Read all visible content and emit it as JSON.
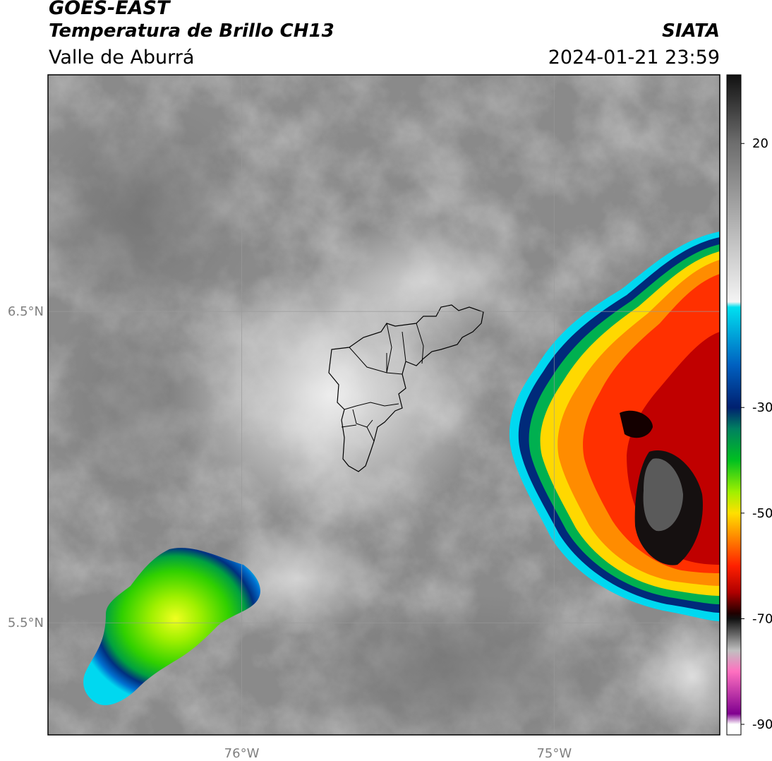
{
  "header": {
    "line1": "GOES-EAST",
    "line2": "Temperatura de Brillo CH13",
    "region": "Valle de Aburrá",
    "org": "SIATA",
    "datetime": "2024-01-21 23:59"
  },
  "map": {
    "lat_labels": [
      "6.5°N",
      "5.5°N"
    ],
    "lon_labels": [
      "76°W",
      "75°W"
    ],
    "lon_range": [
      -76.62,
      -74.47
    ],
    "lat_range": [
      5.14,
      7.26
    ]
  },
  "colorbar": {
    "ticks": [
      {
        "value": 20,
        "label": "20"
      },
      {
        "value": -30,
        "label": "-30"
      },
      {
        "value": -50,
        "label": "-50"
      },
      {
        "value": -70,
        "label": "-70"
      },
      {
        "value": -90,
        "label": "-90"
      }
    ],
    "range": [
      -92,
      33
    ],
    "stops": [
      {
        "value": 33,
        "color": "#111111"
      },
      {
        "value": 20,
        "color": "#6e6e6e"
      },
      {
        "value": 0,
        "color": "#c8c8c8"
      },
      {
        "value": -10,
        "color": "#f4f4f4"
      },
      {
        "value": -11,
        "color": "#00e0f0"
      },
      {
        "value": -22,
        "color": "#0060c0"
      },
      {
        "value": -30,
        "color": "#002070"
      },
      {
        "value": -34,
        "color": "#008060"
      },
      {
        "value": -40,
        "color": "#00c020"
      },
      {
        "value": -46,
        "color": "#a0f000"
      },
      {
        "value": -50,
        "color": "#ffe000"
      },
      {
        "value": -55,
        "color": "#ff8000"
      },
      {
        "value": -60,
        "color": "#ff2000"
      },
      {
        "value": -65,
        "color": "#b00000"
      },
      {
        "value": -69,
        "color": "#200000"
      },
      {
        "value": -70,
        "color": "#101010"
      },
      {
        "value": -76,
        "color": "#c0c0c0"
      },
      {
        "value": -80,
        "color": "#ff70c0"
      },
      {
        "value": -88,
        "color": "#800090"
      },
      {
        "value": -90,
        "color": "#ffffff"
      }
    ]
  }
}
